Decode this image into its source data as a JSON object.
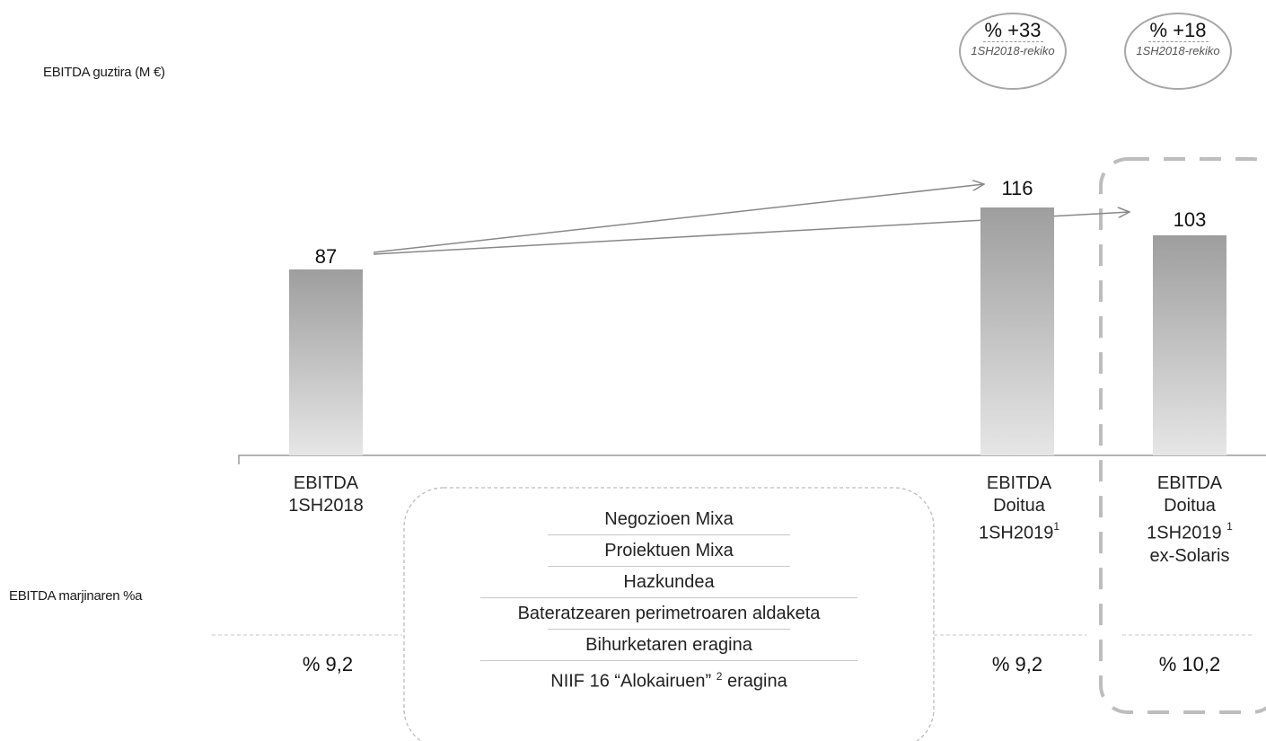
{
  "title": "EBITDA guztira (M €)",
  "margin_label": "EBITDA marjinaren %a",
  "bubbles": [
    {
      "value": "% +33",
      "note": "1SH2018-rekiko"
    },
    {
      "value": "% +18",
      "note": "1SH2018-rekiko"
    }
  ],
  "categories": [
    {
      "line1": "EBITDA",
      "line2": "1SH2018",
      "line3": "",
      "line4": "",
      "footnote": "",
      "value_label": "87",
      "margin": "% 9,2"
    },
    {
      "line1": "EBITDA",
      "line2": "Doitua",
      "line3": "1SH2019",
      "line4": "",
      "footnote": "1",
      "value_label": "116",
      "margin": "% 9,2"
    },
    {
      "line1": "EBITDA",
      "line2": "Doitua",
      "line3": "1SH2019",
      "line4": "ex-Solaris",
      "footnote": "1",
      "value_label": "103",
      "margin": "% 10,2"
    }
  ],
  "drivers": [
    {
      "text": "Negozioen Mixa",
      "sup": "",
      "tail": ""
    },
    {
      "text": "Proiektuen Mixa",
      "sup": "",
      "tail": ""
    },
    {
      "text": "Hazkundea",
      "sup": "",
      "tail": ""
    },
    {
      "text": "Bateratzearen perimetroaren aldaketa",
      "sup": "",
      "tail": ""
    },
    {
      "text": "Bihurketaren eragina",
      "sup": "",
      "tail": ""
    },
    {
      "text": "NIIF 16 “Alokairuen” ",
      "sup": "2",
      "tail": " eragina"
    }
  ],
  "colors": {
    "bar_top": "#9e9e9e",
    "bar_bottom": "#e6e6e6",
    "dashed_box": "#bdbdbd",
    "arrow": "#888888"
  },
  "chart_data": {
    "type": "bar",
    "categories": [
      "EBITDA 1SH2018",
      "EBITDA Doitua 1SH2019",
      "EBITDA Doitua 1SH2019 ex-Solaris"
    ],
    "values": [
      87,
      116,
      103
    ],
    "margins": [
      "% 9,2",
      "% 9,2",
      "% 10,2"
    ],
    "growth": [
      "% +33",
      "% +18"
    ],
    "title": "EBITDA guztira (M €)",
    "ylim": [
      0,
      116
    ],
    "grid": false
  }
}
